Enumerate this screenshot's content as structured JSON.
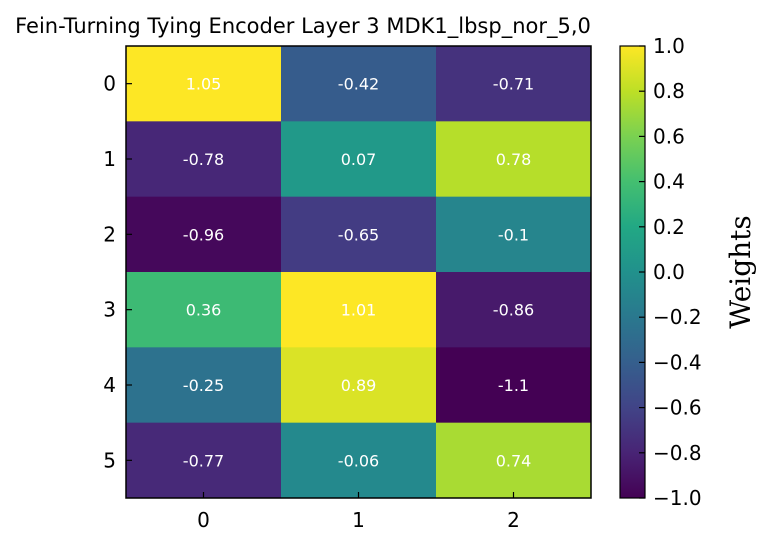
{
  "chart_data": {
    "type": "heatmap",
    "title": "Fein-Turning Tying Encoder Layer 3 MDK1_lbsp_nor_5,0",
    "x_ticks": [
      "0",
      "1",
      "2"
    ],
    "y_ticks": [
      "0",
      "1",
      "2",
      "3",
      "4",
      "5"
    ],
    "values": [
      [
        1.05,
        -0.42,
        -0.71
      ],
      [
        -0.78,
        0.07,
        0.78
      ],
      [
        -0.96,
        -0.65,
        -0.1
      ],
      [
        0.36,
        1.01,
        -0.86
      ],
      [
        -0.25,
        0.89,
        -1.1
      ],
      [
        -0.77,
        -0.06,
        0.74
      ]
    ],
    "cell_labels": [
      [
        "1.05",
        "-0.42",
        "-0.71"
      ],
      [
        "-0.78",
        "0.07",
        "0.78"
      ],
      [
        "-0.96",
        "-0.65",
        "-0.1"
      ],
      [
        "0.36",
        "1.01",
        "-0.86"
      ],
      [
        "-0.25",
        "0.89",
        "-1.1"
      ],
      [
        "-0.77",
        "-0.06",
        "0.74"
      ]
    ],
    "colormap": "viridis",
    "vmin": -1.0,
    "vmax": 1.0,
    "colorbar_label": "Weights",
    "colorbar_ticks": [
      "1.0",
      "0.8",
      "0.6",
      "0.4",
      "0.2",
      "0.0",
      "−0.2",
      "−0.4",
      "−0.6",
      "−0.8",
      "−1.0"
    ],
    "colorbar_tick_values": [
      1.0,
      0.8,
      0.6,
      0.4,
      0.2,
      0.0,
      -0.2,
      -0.4,
      -0.6,
      -0.8,
      -1.0
    ]
  }
}
